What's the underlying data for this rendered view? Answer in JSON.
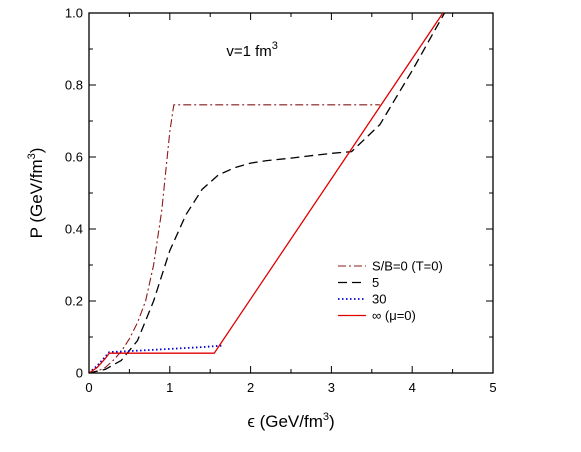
{
  "chart_data": {
    "type": "line",
    "title": "",
    "xlabel": {
      "main": "ϵ (GeV/fm",
      "sup": "3",
      "tail": ")"
    },
    "ylabel": {
      "main": "P (GeV/fm",
      "sup": "3",
      "tail": ")"
    },
    "xlim": [
      0,
      5
    ],
    "ylim": [
      0,
      1.0
    ],
    "xticks": [
      0,
      1,
      2,
      3,
      4,
      5
    ],
    "xtick_labels": [
      "0",
      "1",
      "2",
      "3",
      "4",
      "5"
    ],
    "yticks": [
      0,
      0.2,
      0.4,
      0.6,
      0.8,
      1.0
    ],
    "ytick_labels": [
      "0",
      "0.2",
      "0.4",
      "0.6",
      "0.8",
      "1.0"
    ],
    "grid": false,
    "legend_position": "lower-right",
    "annotation": {
      "main": "v=1 fm",
      "sup": "3",
      "x": 1.7,
      "y": 0.88
    },
    "series": [
      {
        "name": "S/B=0 (T=0)",
        "color": "#8b1a1a",
        "dash": "dashdot",
        "x": [
          0,
          0.1,
          0.2,
          0.3,
          0.4,
          0.5,
          0.6,
          0.7,
          0.8,
          0.9,
          1.0,
          1.05,
          3.6
        ],
        "y": [
          0,
          0.005,
          0.015,
          0.035,
          0.06,
          0.095,
          0.14,
          0.2,
          0.3,
          0.45,
          0.67,
          0.745,
          0.745
        ]
      },
      {
        "name": "5",
        "color": "#000000",
        "dash": "dash",
        "x": [
          0,
          0.2,
          0.4,
          0.6,
          0.8,
          1.0,
          1.2,
          1.4,
          1.6,
          1.8,
          2.0,
          2.2,
          2.5,
          2.8,
          3.0,
          3.25,
          3.6,
          4.0,
          4.4
        ],
        "y": [
          0,
          0.01,
          0.035,
          0.09,
          0.2,
          0.34,
          0.44,
          0.51,
          0.55,
          0.57,
          0.583,
          0.59,
          0.597,
          0.605,
          0.61,
          0.615,
          0.69,
          0.84,
          1.0
        ]
      },
      {
        "name": "30",
        "color": "#0000cc",
        "dash": "dot",
        "x": [
          0,
          0.1,
          0.2,
          0.25,
          0.6,
          1.0,
          1.4,
          1.65
        ],
        "y": [
          0,
          0.02,
          0.045,
          0.058,
          0.062,
          0.067,
          0.072,
          0.076
        ]
      },
      {
        "name": "∞ (μ=0)",
        "color": "#e00000",
        "dash": "solid",
        "x": [
          0,
          0.1,
          0.2,
          0.25,
          1.55,
          4.38
        ],
        "y": [
          0,
          0.015,
          0.04,
          0.055,
          0.055,
          1.0
        ]
      }
    ]
  }
}
